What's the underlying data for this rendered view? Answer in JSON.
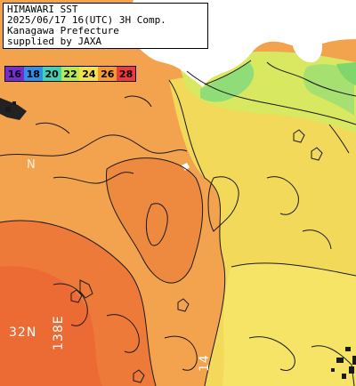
{
  "info": {
    "line1": "HIMAWARI SST",
    "line2": "2025/06/17 16(UTC) 3H Comp.",
    "line3": "Kanagawa Prefecture",
    "line4": "supplied by JAXA"
  },
  "legend": [
    {
      "label": "16",
      "color": "#7a2bd0"
    },
    {
      "label": "18",
      "color": "#2f8fe6"
    },
    {
      "label": "20",
      "color": "#3fd2b4"
    },
    {
      "label": "22",
      "color": "#b8ec4a"
    },
    {
      "label": "24",
      "color": "#f4e24a"
    },
    {
      "label": "26",
      "color": "#f79a30"
    },
    {
      "label": "28",
      "color": "#ee3a3a"
    }
  ],
  "grid_labels": {
    "lat_32": "32N",
    "lat_33": "N",
    "lon_138": "138E",
    "lon_140": "14"
  },
  "colors": {
    "land": "#ffffff",
    "warm_sea": "#ee7a3a",
    "mid_sea": "#f3a24e",
    "cool_sea": "#f2dc5c",
    "coastal_green": "#a8e070"
  }
}
